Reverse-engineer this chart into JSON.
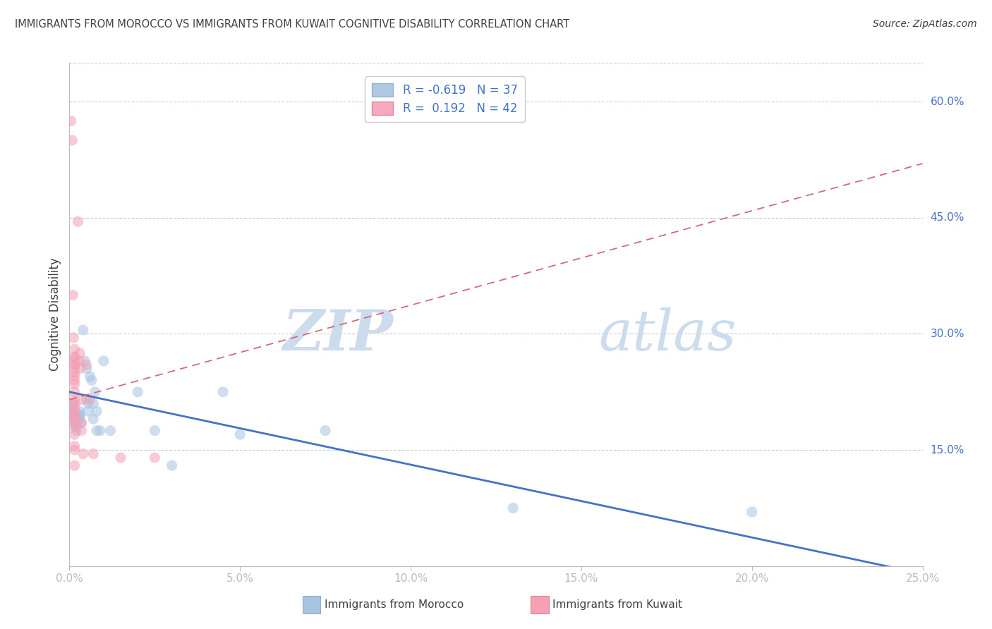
{
  "title": "IMMIGRANTS FROM MOROCCO VS IMMIGRANTS FROM KUWAIT COGNITIVE DISABILITY CORRELATION CHART",
  "source": "Source: ZipAtlas.com",
  "ylabel": "Cognitive Disability",
  "watermark_zip": "ZIP",
  "watermark_atlas": "atlas",
  "morocco_scatter": [
    [
      0.1,
      21.0
    ],
    [
      0.1,
      19.5
    ],
    [
      0.1,
      21.0
    ],
    [
      0.1,
      20.5
    ],
    [
      0.15,
      20.0
    ],
    [
      0.15,
      19.5
    ],
    [
      0.15,
      19.5
    ],
    [
      0.15,
      19.0
    ],
    [
      0.15,
      18.5
    ],
    [
      0.2,
      19.0
    ],
    [
      0.2,
      18.5
    ],
    [
      0.2,
      18.0
    ],
    [
      0.2,
      17.5
    ],
    [
      0.3,
      20.0
    ],
    [
      0.3,
      19.5
    ],
    [
      0.3,
      19.5
    ],
    [
      0.3,
      19.0
    ],
    [
      0.35,
      18.5
    ],
    [
      0.4,
      30.5
    ],
    [
      0.45,
      26.5
    ],
    [
      0.5,
      25.5
    ],
    [
      0.5,
      21.5
    ],
    [
      0.55,
      21.0
    ],
    [
      0.55,
      20.0
    ],
    [
      0.6,
      24.5
    ],
    [
      0.65,
      24.0
    ],
    [
      0.7,
      21.0
    ],
    [
      0.7,
      19.0
    ],
    [
      0.75,
      22.5
    ],
    [
      0.8,
      20.0
    ],
    [
      0.8,
      17.5
    ],
    [
      0.9,
      17.5
    ],
    [
      1.0,
      26.5
    ],
    [
      1.2,
      17.5
    ],
    [
      2.0,
      22.5
    ],
    [
      2.5,
      17.5
    ],
    [
      3.0,
      13.0
    ],
    [
      4.5,
      22.5
    ],
    [
      5.0,
      17.0
    ],
    [
      7.5,
      17.5
    ],
    [
      13.0,
      7.5
    ],
    [
      20.0,
      7.0
    ]
  ],
  "kuwait_scatter": [
    [
      0.05,
      57.5
    ],
    [
      0.08,
      55.0
    ],
    [
      0.1,
      35.0
    ],
    [
      0.12,
      29.5
    ],
    [
      0.15,
      28.0
    ],
    [
      0.15,
      27.0
    ],
    [
      0.15,
      27.0
    ],
    [
      0.15,
      26.5
    ],
    [
      0.15,
      26.0
    ],
    [
      0.15,
      26.0
    ],
    [
      0.15,
      25.5
    ],
    [
      0.15,
      25.0
    ],
    [
      0.15,
      24.5
    ],
    [
      0.15,
      24.0
    ],
    [
      0.15,
      23.5
    ],
    [
      0.15,
      22.5
    ],
    [
      0.15,
      21.5
    ],
    [
      0.15,
      21.0
    ],
    [
      0.15,
      20.5
    ],
    [
      0.15,
      20.0
    ],
    [
      0.15,
      19.5
    ],
    [
      0.15,
      19.5
    ],
    [
      0.15,
      19.0
    ],
    [
      0.15,
      18.5
    ],
    [
      0.15,
      18.0
    ],
    [
      0.15,
      17.0
    ],
    [
      0.15,
      15.5
    ],
    [
      0.15,
      15.0
    ],
    [
      0.15,
      13.0
    ],
    [
      0.25,
      44.5
    ],
    [
      0.3,
      27.5
    ],
    [
      0.3,
      26.5
    ],
    [
      0.3,
      25.5
    ],
    [
      0.35,
      21.5
    ],
    [
      0.35,
      18.5
    ],
    [
      0.35,
      17.5
    ],
    [
      0.4,
      14.5
    ],
    [
      0.5,
      26.0
    ],
    [
      0.6,
      21.5
    ],
    [
      0.7,
      14.5
    ],
    [
      1.5,
      14.0
    ],
    [
      2.5,
      14.0
    ]
  ],
  "morocco_line": {
    "x": [
      0.0,
      25.0
    ],
    "y": [
      22.5,
      -1.0
    ],
    "color": "#4472c4",
    "style": "solid"
  },
  "kuwait_line": {
    "x": [
      0.0,
      25.0
    ],
    "y": [
      21.5,
      52.0
    ],
    "color": "#d4697a",
    "style": "dashed"
  },
  "kuwait_line_extend": {
    "x": [
      0.0,
      25.0
    ],
    "y": [
      21.5,
      52.0
    ],
    "color": "#ccaaaa",
    "style": "dashed"
  },
  "morocco_color": "#a8c4e0",
  "kuwait_color": "#f4a0b5",
  "xlim": [
    0.0,
    25.0
  ],
  "ylim": [
    0.0,
    65.0
  ],
  "right_yticks": [
    15.0,
    30.0,
    45.0,
    60.0
  ],
  "right_ytick_labels": [
    "15.0%",
    "30.0%",
    "45.0%",
    "60.0%"
  ],
  "bottom_xticks": [
    0.0,
    5.0,
    10.0,
    15.0,
    20.0,
    25.0
  ],
  "bottom_xtick_labels": [
    "0.0%",
    "5.0%",
    "10.0%",
    "15.0%",
    "20.0%",
    "25.0%"
  ],
  "grid_color": "#cccccc",
  "background_color": "#ffffff",
  "title_color": "#404040",
  "axis_color": "#4472c4",
  "watermark_color": "#ccdcec",
  "scatter_size": 120,
  "scatter_alpha": 0.55
}
